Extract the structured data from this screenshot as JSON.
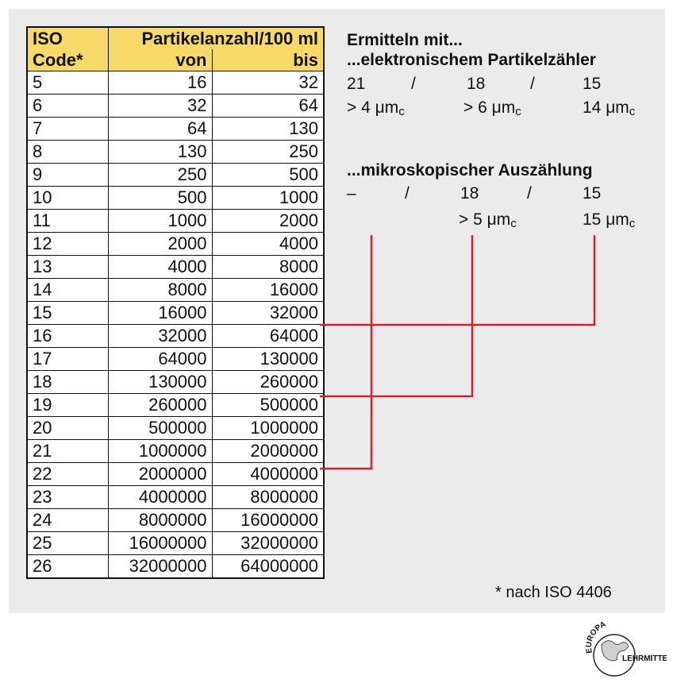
{
  "table": {
    "header": {
      "code_line1": "ISO",
      "code_line2": "Code*",
      "group": "Partikelanzahl/100 ml",
      "from": "von",
      "to": "bis"
    },
    "rows": [
      {
        "code": "5",
        "von": "16",
        "bis": "32"
      },
      {
        "code": "6",
        "von": "32",
        "bis": "64"
      },
      {
        "code": "7",
        "von": "64",
        "bis": "130"
      },
      {
        "code": "8",
        "von": "130",
        "bis": "250"
      },
      {
        "code": "9",
        "von": "250",
        "bis": "500"
      },
      {
        "code": "10",
        "von": "500",
        "bis": "1000"
      },
      {
        "code": "11",
        "von": "1000",
        "bis": "2000"
      },
      {
        "code": "12",
        "von": "2000",
        "bis": "4000"
      },
      {
        "code": "13",
        "von": "4000",
        "bis": "8000"
      },
      {
        "code": "14",
        "von": "8000",
        "bis": "16000"
      },
      {
        "code": "15",
        "von": "16000",
        "bis": "32000"
      },
      {
        "code": "16",
        "von": "32000",
        "bis": "64000"
      },
      {
        "code": "17",
        "von": "64000",
        "bis": "130000"
      },
      {
        "code": "18",
        "von": "130000",
        "bis": "260000"
      },
      {
        "code": "19",
        "von": "260000",
        "bis": "500000"
      },
      {
        "code": "20",
        "von": "500000",
        "bis": "1000000"
      },
      {
        "code": "21",
        "von": "1000000",
        "bis": "2000000"
      },
      {
        "code": "22",
        "von": "2000000",
        "bis": "4000000"
      },
      {
        "code": "23",
        "von": "4000000",
        "bis": "8000000"
      },
      {
        "code": "24",
        "von": "8000000",
        "bis": "16000000"
      },
      {
        "code": "25",
        "von": "16000000",
        "bis": "32000000"
      },
      {
        "code": "26",
        "von": "32000000",
        "bis": "64000000"
      }
    ]
  },
  "right": {
    "heading": "Ermitteln mit...",
    "electronic_heading": "...elektronischem Partikelzähler",
    "electronic_codes": [
      "21",
      "/",
      "18",
      "/",
      "15"
    ],
    "electronic_sizes": [
      {
        "prefix": ">",
        "value": "4",
        "unit": "μm",
        "sub": "c"
      },
      {
        "prefix": ">",
        "value": "6",
        "unit": "μm",
        "sub": "c"
      },
      {
        "prefix": "",
        "value": "14",
        "unit": "μm",
        "sub": "c"
      }
    ],
    "microscopic_heading": "...mikroskopischer Auszählung",
    "microscopic_codes": [
      "–",
      "/",
      "18",
      "/",
      "15"
    ],
    "microscopic_sizes": [
      {
        "prefix": ">",
        "value": "5",
        "unit": "μm",
        "sub": "c"
      },
      {
        "prefix": "",
        "value": "15",
        "unit": "μm",
        "sub": "c"
      }
    ]
  },
  "footnote": "* nach ISO 4406",
  "logo": {
    "top_text": "EUROPA",
    "bottom_text": "LEHRMITTEL"
  },
  "colors": {
    "header_bg": "#f7d96a",
    "connector": "#d5202e",
    "panel": "#ebebeb"
  }
}
